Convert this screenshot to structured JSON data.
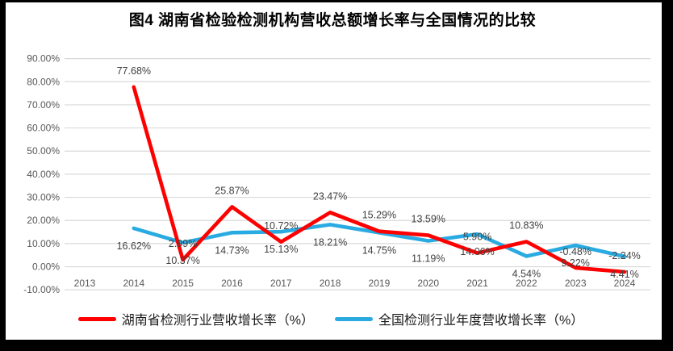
{
  "title": "图4 湖南省检验检测机构营收总额增长率与全国情况的比较",
  "colors": {
    "hunan_series": "#FE0000",
    "national_series": "#29ABE2",
    "grid_line": "#D9D9D9",
    "axis_text": "#595959",
    "data_label_text": "#404040",
    "title_text": "#000000",
    "frame": "#000000"
  },
  "chart_data": {
    "type": "line",
    "title": "图4 湖南省检验检测机构营收总额增长率与全国情况的比较",
    "categories": [
      "2013",
      "2014",
      "2015",
      "2016",
      "2017",
      "2018",
      "2019",
      "2020",
      "2021",
      "2022",
      "2023",
      "2024"
    ],
    "series": [
      {
        "id": "hunan",
        "name": "湖南省检测行业营收增长率（%）",
        "color": "#FE0000",
        "label_position": "above",
        "values": [
          null,
          77.68,
          2.99,
          25.87,
          10.72,
          23.47,
          15.29,
          13.59,
          5.9,
          10.83,
          -0.48,
          -2.24
        ],
        "labels": [
          "",
          "77.68%",
          "2.99%",
          "25.87%",
          "10.72%",
          "23.47%",
          "15.29%",
          "13.59%",
          "5.90%",
          "10.83%",
          "-0.48%",
          "-2.24%"
        ]
      },
      {
        "id": "national",
        "name": "全国检测行业年度营收增长率（%）",
        "color": "#29ABE2",
        "label_position": "below",
        "values": [
          null,
          16.62,
          10.37,
          14.73,
          15.13,
          18.21,
          14.75,
          11.19,
          14.06,
          4.54,
          9.22,
          4.41
        ],
        "labels": [
          "",
          "16.62%",
          "10.37%",
          "14.73%",
          "15.13%",
          "18.21%",
          "14.75%",
          "11.19%",
          "14.06%",
          "4.54%",
          "9.22%",
          "4.41%"
        ]
      }
    ],
    "ylim": [
      -10,
      90
    ],
    "ytick_step": 10,
    "ytick_labels": [
      "90.00%",
      "80.00%",
      "70.00%",
      "60.00%",
      "50.00%",
      "40.00%",
      "30.00%",
      "20.00%",
      "10.00%",
      "0.00%",
      "-10.00%"
    ],
    "grid": "horizontal",
    "legend_position": "bottom"
  }
}
